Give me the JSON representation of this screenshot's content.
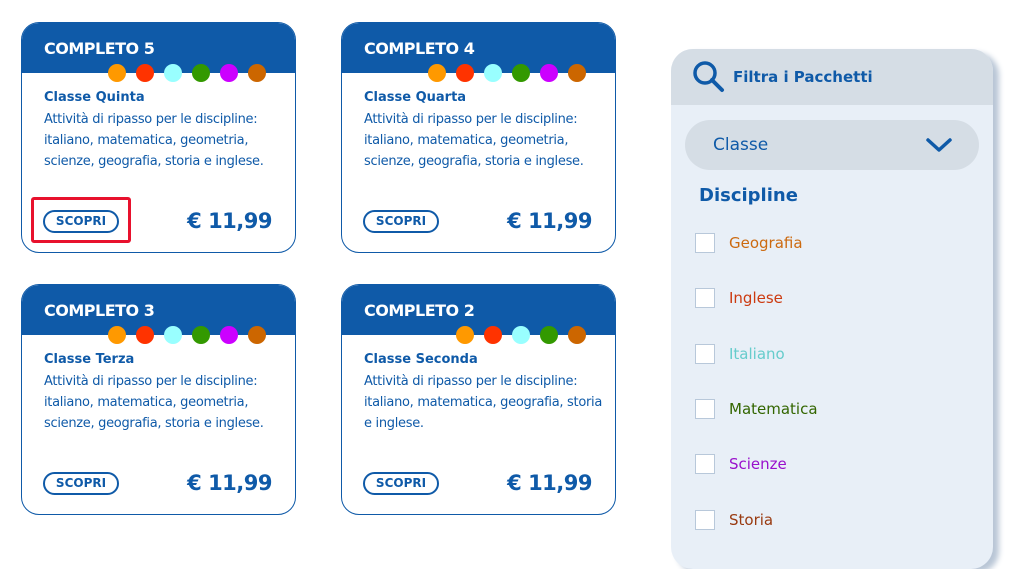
{
  "cards": [
    {
      "title": "COMPLETO 5",
      "subtitle": "Classe Quinta",
      "description": "Attività di ripasso per le discipline: italiano, matematica, geometria, scienze, geografia, storia e inglese.",
      "button": "SCOPRI",
      "price": "€ 11,99",
      "dots": [
        "#ff9900",
        "#ff3300",
        "#99ffff",
        "#339900",
        "#cc00ff",
        "#cc6600"
      ],
      "highlighted": true
    },
    {
      "title": "COMPLETO 4",
      "subtitle": "Classe Quarta",
      "description": "Attività di ripasso per le discipline: italiano, matematica, geometria, scienze, geografia, storia e inglese.",
      "button": "SCOPRI",
      "price": "€ 11,99",
      "dots": [
        "#ff9900",
        "#ff3300",
        "#99ffff",
        "#339900",
        "#cc00ff",
        "#cc6600"
      ]
    },
    {
      "title": "COMPLETO 3",
      "subtitle": "Classe Terza",
      "description": "Attività di ripasso per le discipline: italiano, matematica, geometria, scienze, geografia, storia e inglese.",
      "button": "SCOPRI",
      "price": "€ 11,99",
      "dots": [
        "#ff9900",
        "#ff3300",
        "#99ffff",
        "#339900",
        "#cc00ff",
        "#cc6600"
      ]
    },
    {
      "title": "COMPLETO 2",
      "subtitle": "Classe Seconda",
      "description": "Attività di ripasso per le discipline: italiano, matematica, geografia, storia e inglese.",
      "button": "SCOPRI",
      "price": "€ 11,99",
      "dots": [
        "#ff9900",
        "#ff3300",
        "#99ffff",
        "#339900",
        "#cc6600"
      ]
    }
  ],
  "filter": {
    "title": "Filtra i Pacchetti",
    "icon": "search-icon",
    "select": "Classe",
    "disciplines_title": "Discipline",
    "options": [
      {
        "label": "Geografia",
        "color": "#cc6a10",
        "checked": false
      },
      {
        "label": "Inglese",
        "color": "#cc3a10",
        "checked": false
      },
      {
        "label": "Italiano",
        "color": "#66cccc",
        "checked": false
      },
      {
        "label": "Matematica",
        "color": "#336600",
        "checked": false
      },
      {
        "label": "Scienze",
        "color": "#9910cc",
        "checked": false
      },
      {
        "label": "Storia",
        "color": "#993a10",
        "checked": false
      }
    ]
  },
  "colors": {
    "brand": "#0f5aa8",
    "highlight": "#e8112d"
  }
}
